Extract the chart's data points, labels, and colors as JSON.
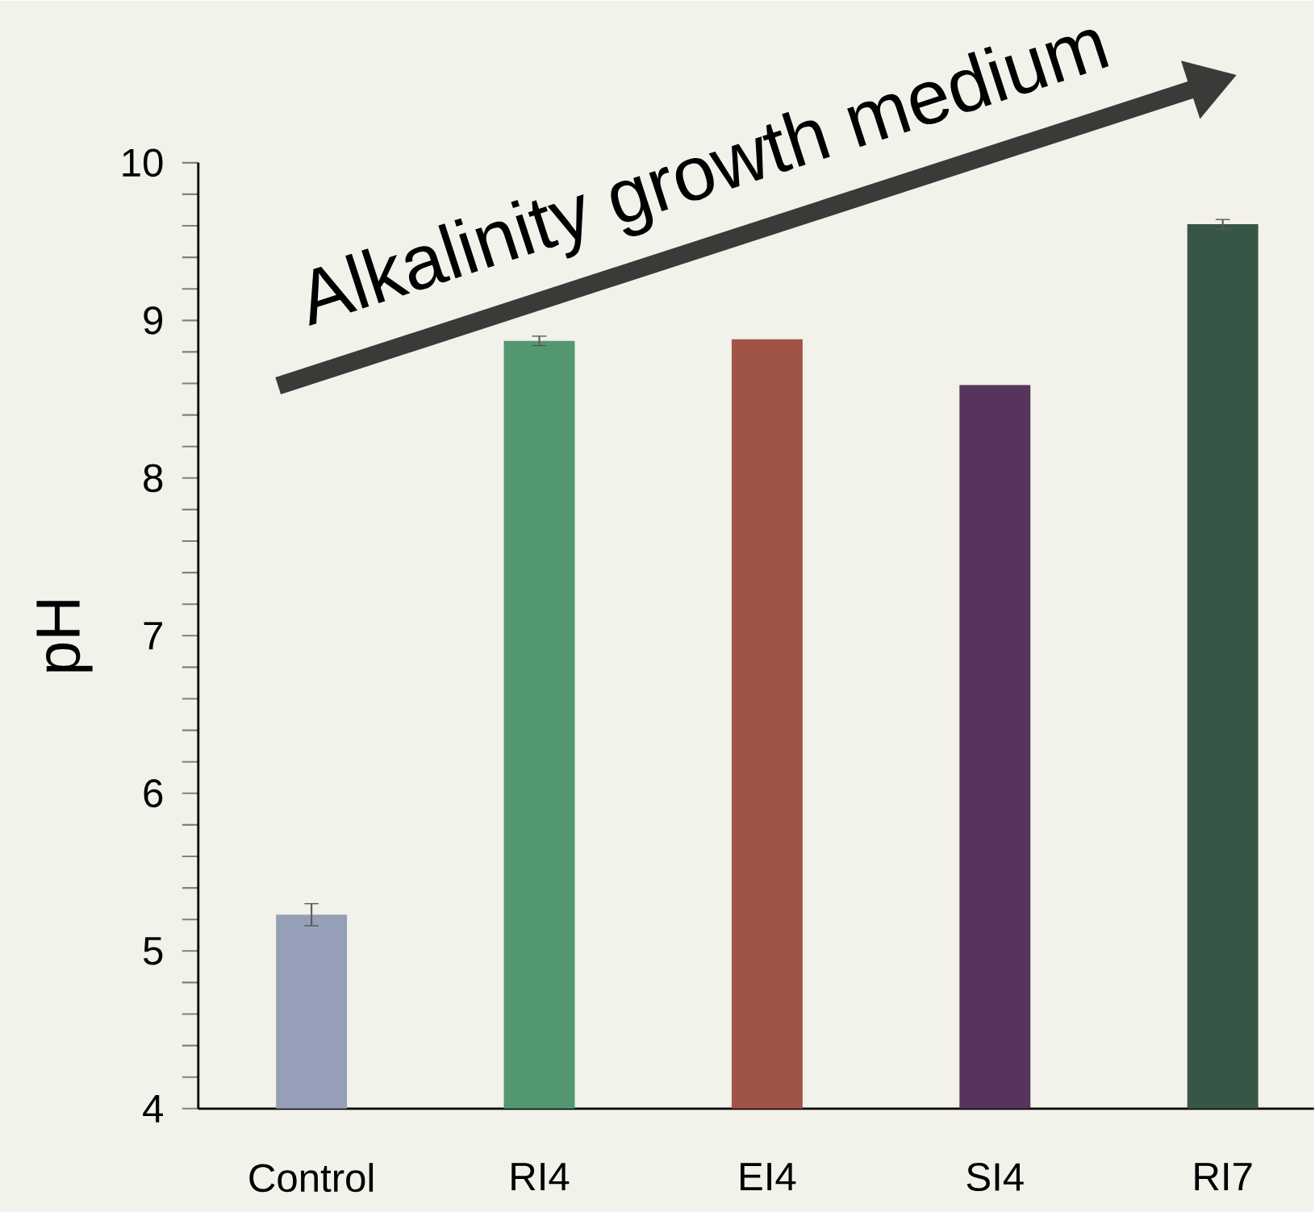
{
  "chart_data": {
    "type": "bar",
    "ylabel": "pH",
    "categories": [
      "Control",
      "RI4",
      "EI4",
      "SI4",
      "RI7"
    ],
    "values": [
      5.23,
      8.87,
      8.88,
      8.59,
      9.61
    ],
    "errors": [
      0.07,
      0.03,
      null,
      null,
      0.03
    ],
    "colors": [
      "#95a0b8",
      "#539771",
      "#a05446",
      "#56345b",
      "#385646"
    ],
    "ylim": [
      4,
      10
    ],
    "yticks": [
      4,
      5,
      6,
      7,
      8,
      9,
      10
    ],
    "annotations": [
      "Alkalinity growth medium"
    ],
    "grid": false
  }
}
